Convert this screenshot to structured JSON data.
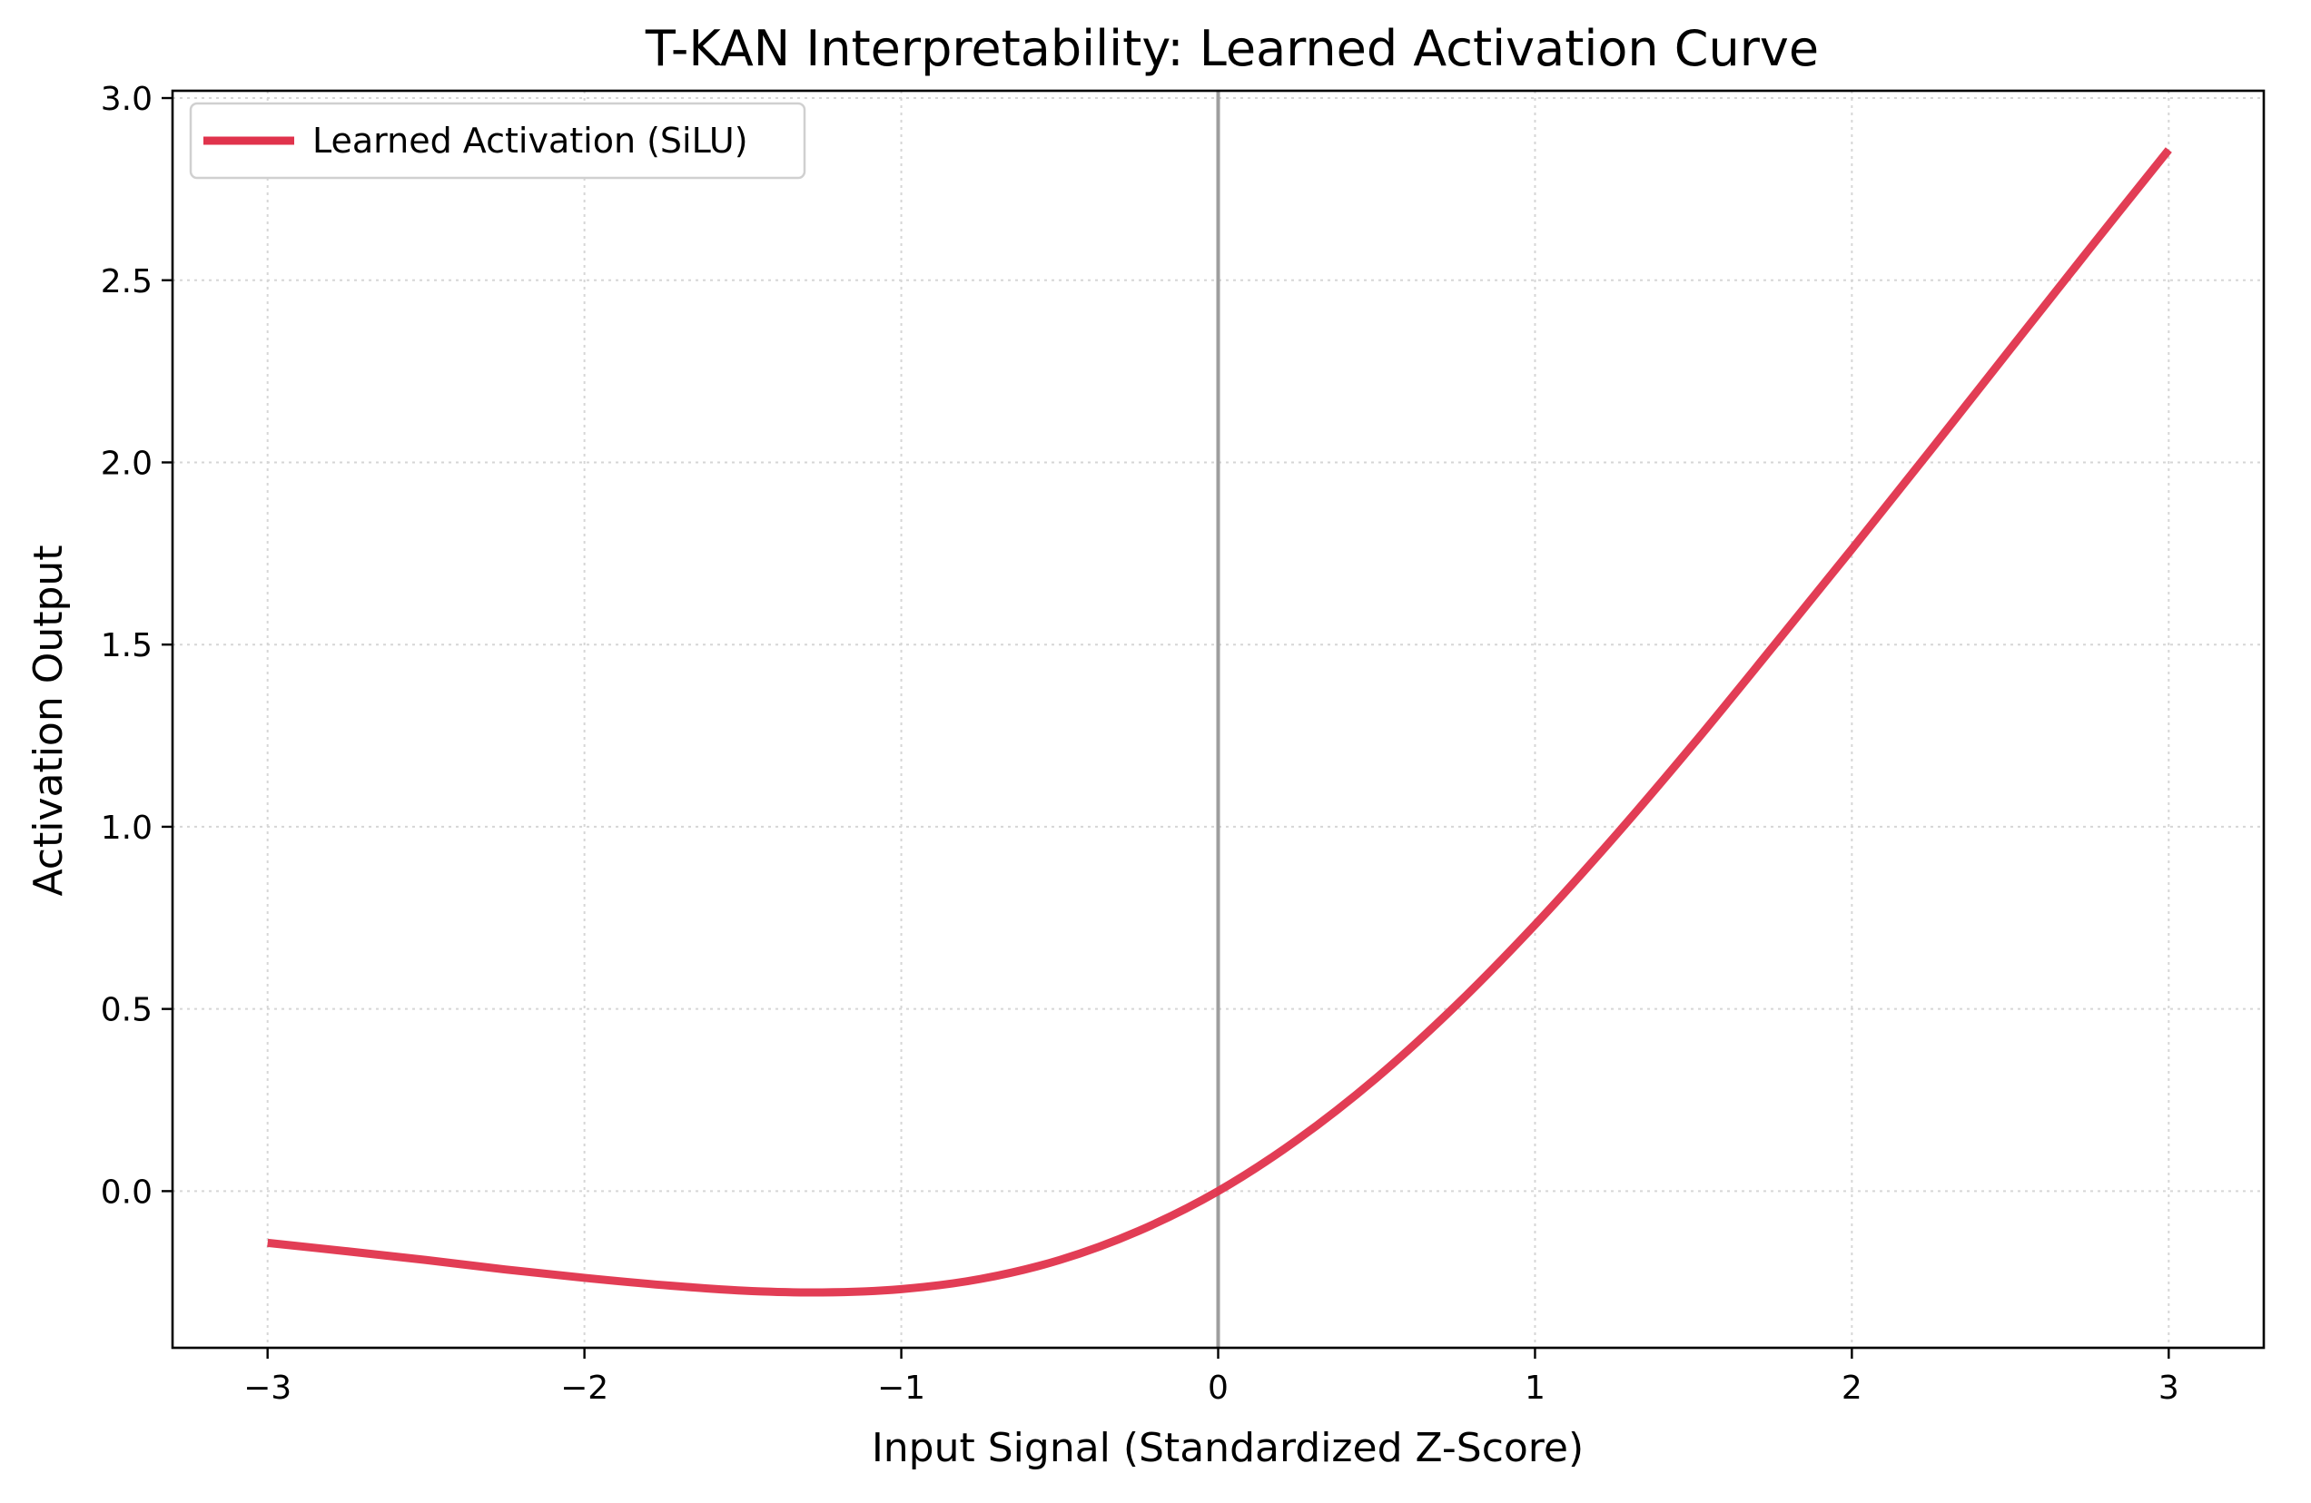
{
  "chart_data": {
    "type": "line",
    "title": "T-KAN Interpretability: Learned Activation Curve",
    "xlabel": "Input Signal (Standardized Z-Score)",
    "ylabel": "Activation Output",
    "xlim": [
      -3.3,
      3.3
    ],
    "ylim": [
      -0.43,
      3.02
    ],
    "x_ticks": [
      -3,
      -2,
      -1,
      0,
      1,
      2,
      3
    ],
    "x_tick_labels": [
      "−3",
      "−2",
      "−1",
      "0",
      "1",
      "2",
      "3"
    ],
    "y_ticks": [
      0.0,
      0.5,
      1.0,
      1.5,
      2.0,
      2.5,
      3.0
    ],
    "y_tick_labels": [
      "0.0",
      "0.5",
      "1.0",
      "1.5",
      "2.0",
      "2.5",
      "3.0"
    ],
    "grid": true,
    "legend_position": "top-left",
    "reference_line": {
      "x": 0,
      "color": "#9e9e9e"
    },
    "series": [
      {
        "name": "Learned Activation (SiLU)",
        "color": "#e0334c",
        "x": [
          -3.0,
          -2.75,
          -2.5,
          -2.25,
          -2.0,
          -1.75,
          -1.5,
          -1.25,
          -1.0,
          -0.75,
          -0.5,
          -0.25,
          0.0,
          0.25,
          0.5,
          0.75,
          1.0,
          1.25,
          1.5,
          1.75,
          2.0,
          2.25,
          2.5,
          2.75,
          3.0
        ],
        "y": [
          -0.142,
          -0.165,
          -0.189,
          -0.215,
          -0.238,
          -0.258,
          -0.273,
          -0.278,
          -0.269,
          -0.241,
          -0.189,
          -0.109,
          0.0,
          0.141,
          0.311,
          0.509,
          0.731,
          0.972,
          1.227,
          1.493,
          1.762,
          2.035,
          2.311,
          2.586,
          2.858
        ]
      }
    ]
  }
}
